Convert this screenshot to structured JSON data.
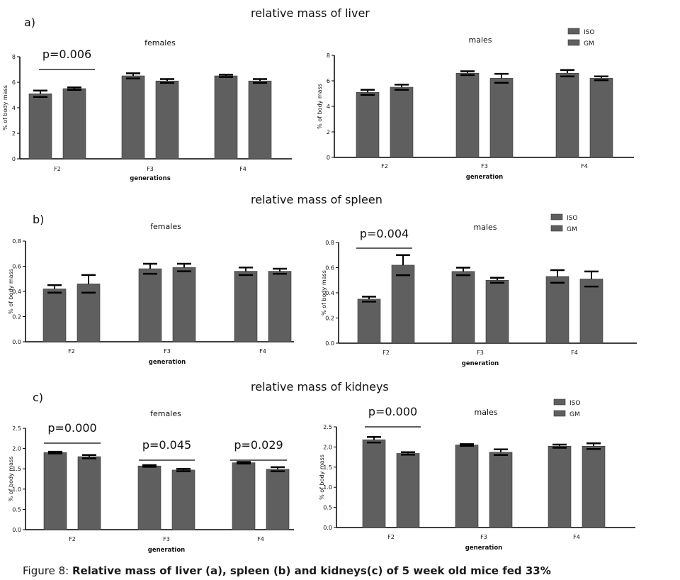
{
  "sections": [
    {
      "letter": "a)",
      "title": "relative mass of liver"
    },
    {
      "letter": "b)",
      "title": "relative mass of spleen"
    },
    {
      "letter": "c)",
      "title": "relative mass of kidneys"
    }
  ],
  "caption": {
    "prefix": "Figure 8: ",
    "bold": "Relative mass of liver (a), spleen (b) and kidneys(c) of 5 week old mice fed 33%"
  },
  "colors": {
    "bar": "#5f5f5f",
    "axis": "#000000"
  },
  "chart_data": [
    {
      "id": "liver-females",
      "type": "bar",
      "title": "females",
      "xlabel": "generations",
      "ylabel": "% of body mass",
      "categories": [
        "F2",
        "F3",
        "F4"
      ],
      "ylim": [
        0,
        8
      ],
      "yticks": [
        "0",
        "2",
        "4",
        "6",
        "8"
      ],
      "ytick_values": [
        0,
        2,
        4,
        6,
        8
      ],
      "series": [
        {
          "name": "ISO",
          "values": [
            5.1,
            6.5,
            6.5
          ],
          "errors": [
            0.25,
            0.2,
            0.1
          ]
        },
        {
          "name": "GM",
          "values": [
            5.5,
            6.1,
            6.1
          ],
          "errors": [
            0.1,
            0.15,
            0.15
          ]
        }
      ],
      "annotations": [
        {
          "text": "p=0.006",
          "category": "F2"
        }
      ],
      "legend": null
    },
    {
      "id": "liver-males",
      "type": "bar",
      "title": "males",
      "xlabel": "generation",
      "ylabel": "% of body mass",
      "categories": [
        "F2",
        "F3",
        "F4"
      ],
      "ylim": [
        0,
        8
      ],
      "yticks": [
        "0",
        "2",
        "4",
        "6",
        "8"
      ],
      "ytick_values": [
        0,
        2,
        4,
        6,
        8
      ],
      "series": [
        {
          "name": "ISO",
          "values": [
            5.1,
            6.6,
            6.6
          ],
          "errors": [
            0.2,
            0.15,
            0.25
          ]
        },
        {
          "name": "GM",
          "values": [
            5.5,
            6.2,
            6.2
          ],
          "errors": [
            0.2,
            0.35,
            0.15
          ]
        }
      ],
      "annotations": [],
      "legend": "top-right"
    },
    {
      "id": "spleen-females",
      "type": "bar",
      "title": "females",
      "xlabel": "generation",
      "ylabel": "% of body mass",
      "categories": [
        "F2",
        "F3",
        "F4"
      ],
      "ylim": [
        0,
        0.8
      ],
      "yticks": [
        "0.0",
        "0.2",
        "0.4",
        "0.6",
        "0.8"
      ],
      "ytick_values": [
        0,
        0.2,
        0.4,
        0.6,
        0.8
      ],
      "series": [
        {
          "name": "ISO",
          "values": [
            0.42,
            0.58,
            0.56
          ],
          "errors": [
            0.03,
            0.04,
            0.03
          ]
        },
        {
          "name": "GM",
          "values": [
            0.46,
            0.59,
            0.56
          ],
          "errors": [
            0.07,
            0.03,
            0.02
          ]
        }
      ],
      "annotations": [],
      "legend": null
    },
    {
      "id": "spleen-males",
      "type": "bar",
      "title": "males",
      "xlabel": "generation",
      "ylabel": "% of body mass",
      "categories": [
        "F2",
        "F3",
        "F4"
      ],
      "ylim": [
        0,
        0.8
      ],
      "yticks": [
        "0.0",
        "0.2",
        "0.4",
        "0.6",
        "0.8"
      ],
      "ytick_values": [
        0,
        0.2,
        0.4,
        0.6,
        0.8
      ],
      "series": [
        {
          "name": "ISO",
          "values": [
            0.35,
            0.57,
            0.53
          ],
          "errors": [
            0.02,
            0.03,
            0.05
          ]
        },
        {
          "name": "GM",
          "values": [
            0.62,
            0.5,
            0.51
          ],
          "errors": [
            0.08,
            0.02,
            0.06
          ]
        }
      ],
      "annotations": [
        {
          "text": "p=0.004",
          "category": "F2"
        }
      ],
      "legend": "top-right"
    },
    {
      "id": "kidneys-females",
      "type": "bar",
      "title": "females",
      "xlabel": "generation",
      "ylabel": "% of body mass",
      "categories": [
        "F2",
        "F3",
        "F4"
      ],
      "ylim": [
        0,
        2.5
      ],
      "yticks": [
        "0.0",
        "0.5",
        "1.0",
        "1.5",
        "2.0",
        "2.5"
      ],
      "ytick_values": [
        0,
        0.5,
        1.0,
        1.5,
        2.0,
        2.5
      ],
      "series": [
        {
          "name": "ISO",
          "values": [
            1.9,
            1.57,
            1.65
          ],
          "errors": [
            0.02,
            0.02,
            0.02
          ]
        },
        {
          "name": "GM",
          "values": [
            1.8,
            1.47,
            1.49
          ],
          "errors": [
            0.04,
            0.03,
            0.05
          ]
        }
      ],
      "annotations": [
        {
          "text": "p=0.000",
          "category": "F2"
        },
        {
          "text": "p=0.045",
          "category": "F3"
        },
        {
          "text": "p=0.029",
          "category": "F4"
        }
      ],
      "legend": null
    },
    {
      "id": "kidneys-males",
      "type": "bar",
      "title": "males",
      "xlabel": "generation",
      "ylabel": "% of body mass",
      "categories": [
        "F2",
        "F3",
        "F4"
      ],
      "ylim": [
        0,
        2.5
      ],
      "yticks": [
        "0.0",
        "0.5",
        "1.0",
        "1.5",
        "2.0",
        "2.5"
      ],
      "ytick_values": [
        0,
        0.5,
        1.0,
        1.5,
        2.0,
        2.5
      ],
      "series": [
        {
          "name": "ISO",
          "values": [
            2.18,
            2.05,
            2.02
          ],
          "errors": [
            0.07,
            0.02,
            0.04
          ]
        },
        {
          "name": "GM",
          "values": [
            1.84,
            1.87,
            2.02
          ],
          "errors": [
            0.03,
            0.07,
            0.07
          ]
        }
      ],
      "annotations": [
        {
          "text": "p=0.000",
          "category": "F2"
        }
      ],
      "legend": "top-right"
    }
  ]
}
